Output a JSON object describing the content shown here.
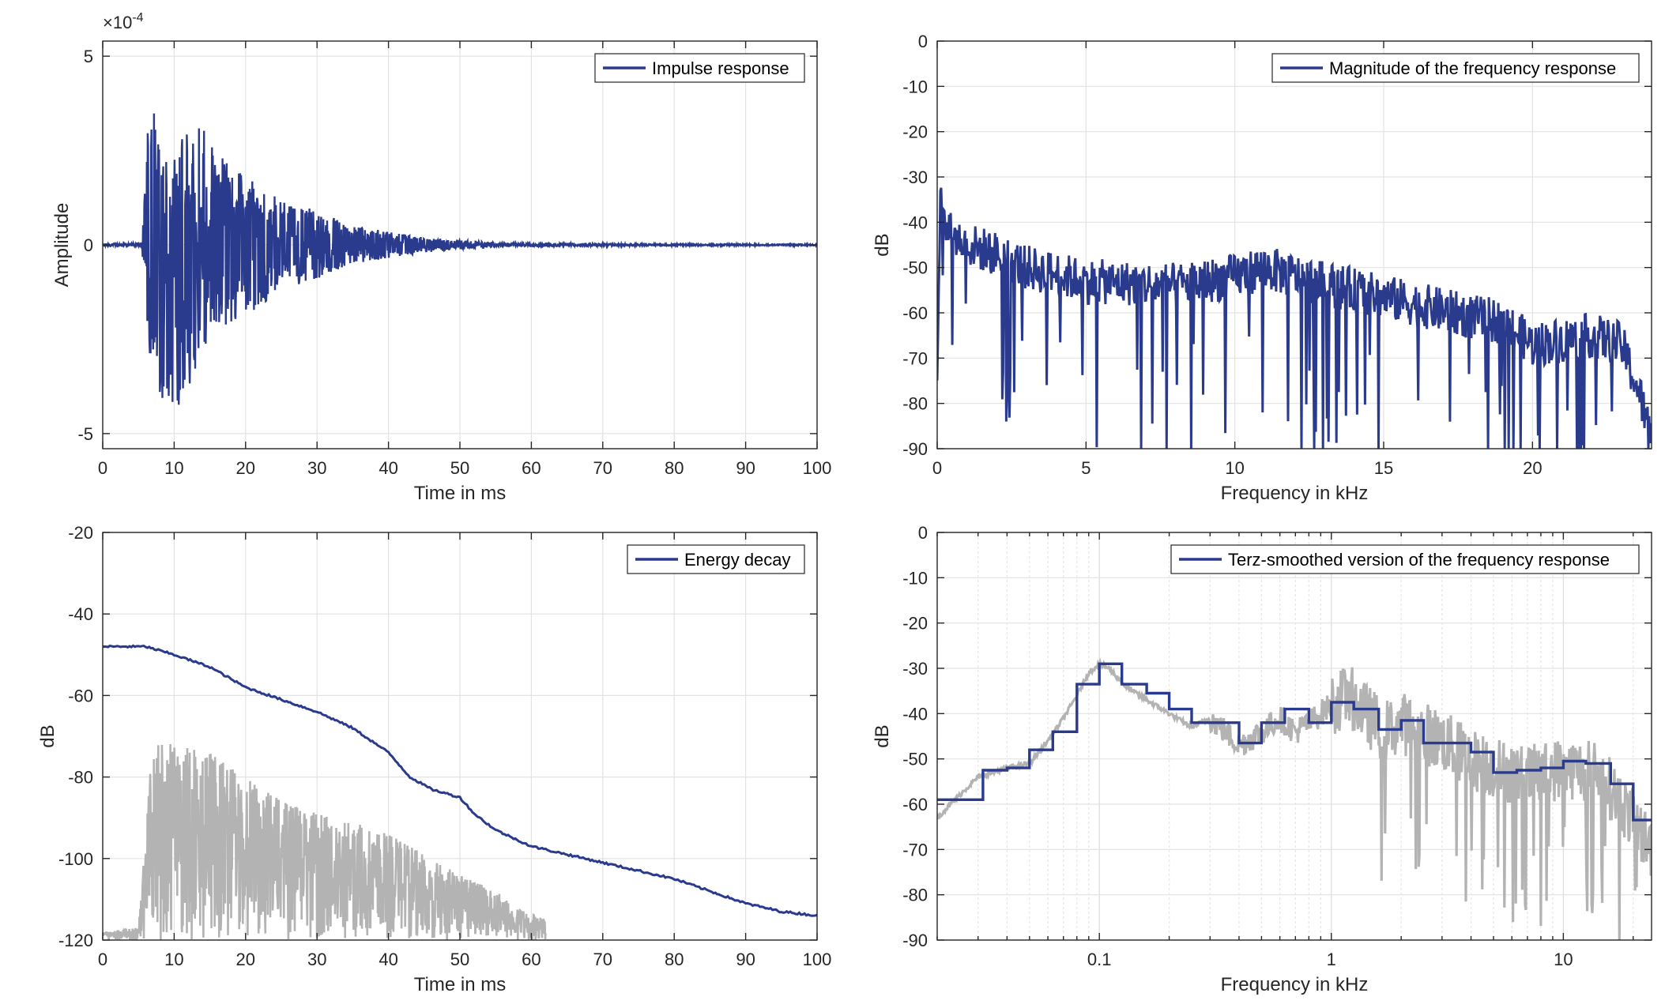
{
  "chart_data": [
    {
      "type": "line",
      "xlabel": "Time in ms",
      "ylabel": "Amplitude",
      "exponent_label": "×10",
      "exponent_power": "-4",
      "xlim": [
        0,
        100
      ],
      "ylim": [
        -5.4,
        5.4
      ],
      "xticks": [
        0,
        10,
        20,
        30,
        40,
        50,
        60,
        70,
        80,
        90,
        100
      ],
      "yticks": [
        -5,
        0,
        5
      ],
      "grid": true,
      "legend": "top-right",
      "envelope": {
        "x": [
          0,
          5.5,
          6.5,
          7,
          8,
          9,
          10,
          12,
          13,
          15,
          17,
          20,
          25,
          30,
          35,
          40,
          45,
          50,
          55,
          60,
          70,
          80,
          90,
          100
        ],
        "max": [
          0.05,
          0.1,
          4.1,
          4.1,
          2.6,
          2.2,
          2.6,
          3.0,
          3.4,
          2.8,
          2.4,
          1.8,
          1.2,
          0.9,
          0.5,
          0.35,
          0.2,
          0.12,
          0.06,
          0.04,
          0.03,
          0.02,
          0.02,
          0.02
        ],
        "min": [
          -0.05,
          -0.1,
          -2.9,
          -2.9,
          -4.2,
          -4.9,
          -4.5,
          -3.9,
          -3.3,
          -2.5,
          -2.2,
          -1.9,
          -1.2,
          -0.9,
          -0.5,
          -0.35,
          -0.2,
          -0.12,
          -0.06,
          -0.04,
          -0.03,
          -0.02,
          -0.02,
          -0.02
        ]
      },
      "series": [
        {
          "name": "Impulse response",
          "color": "#2a3a8c"
        }
      ]
    },
    {
      "type": "line",
      "xlabel": "Frequency in kHz",
      "ylabel": "dB",
      "xlim": [
        0,
        24
      ],
      "ylim": [
        -90,
        0
      ],
      "xticks": [
        0,
        5,
        10,
        15,
        20
      ],
      "yticks": [
        0,
        -10,
        -20,
        -30,
        -40,
        -50,
        -60,
        -70,
        -80,
        -90
      ],
      "grid": true,
      "legend": "top-right",
      "trend": {
        "x": [
          0,
          0.1,
          0.2,
          0.5,
          1,
          2,
          3,
          5,
          8,
          10,
          11,
          12,
          14,
          16,
          18,
          19,
          20,
          21,
          22,
          23,
          23.6,
          24
        ],
        "y": [
          -75,
          -33,
          -40,
          -43,
          -45,
          -47,
          -50,
          -53,
          -54,
          -52,
          -50,
          -52,
          -55,
          -58,
          -61,
          -62,
          -67,
          -66,
          -65,
          -67,
          -78,
          -88
        ]
      },
      "series": [
        {
          "name": "Magnitude of the frequency response",
          "color": "#2a3a8c"
        }
      ]
    },
    {
      "type": "line",
      "xlabel": "Time in ms",
      "ylabel": "dB",
      "xlim": [
        0,
        100
      ],
      "ylim": [
        -120,
        -20
      ],
      "xticks": [
        0,
        10,
        20,
        30,
        40,
        50,
        60,
        70,
        80,
        90,
        100
      ],
      "yticks": [
        -20,
        -40,
        -60,
        -80,
        -100,
        -120
      ],
      "grid": true,
      "legend": "top-right",
      "series": [
        {
          "name": "Energy decay",
          "color": "#2a3a8c",
          "x": [
            0,
            6,
            8,
            10,
            15,
            20,
            25,
            30,
            35,
            40,
            43,
            46,
            50,
            52,
            55,
            60,
            65,
            70,
            75,
            80,
            85,
            90,
            95,
            100
          ],
          "y": [
            -48,
            -48,
            -49,
            -50,
            -53,
            -58,
            -61,
            -64,
            -68,
            -74,
            -80,
            -83,
            -85,
            -89,
            -93,
            -97,
            -99,
            -101,
            -103,
            -105,
            -108,
            -111,
            -113,
            -114
          ]
        }
      ],
      "background_trace": {
        "color": "#b3b3b3",
        "x": [
          0,
          5,
          6,
          7,
          10,
          15,
          20,
          25,
          30,
          35,
          40,
          45,
          50,
          55,
          58,
          62
        ],
        "top": [
          -118,
          -117,
          -95,
          -70,
          -72,
          -74,
          -80,
          -86,
          -89,
          -91,
          -94,
          -99,
          -104,
          -108,
          -112,
          -115
        ],
        "floor": -120
      }
    },
    {
      "type": "line",
      "xscale": "log",
      "xlabel": "Frequency in kHz",
      "ylabel": "dB",
      "xlim": [
        0.02,
        24
      ],
      "ylim": [
        -90,
        0
      ],
      "xticks": [
        0.1,
        1,
        10
      ],
      "xticklabels": [
        "0.1",
        "1",
        "10"
      ],
      "yticks": [
        0,
        -10,
        -20,
        -30,
        -40,
        -50,
        -60,
        -70,
        -80,
        -90
      ],
      "grid": true,
      "legend": "top-right",
      "series": [
        {
          "name": "Terz-smoothed version of the frequency response",
          "color": "#2a3a8c",
          "steps": [
            [
              0.02,
              0.0315,
              -59
            ],
            [
              0.0315,
              0.04,
              -52.5
            ],
            [
              0.04,
              0.05,
              -52
            ],
            [
              0.05,
              0.063,
              -48
            ],
            [
              0.063,
              0.08,
              -44
            ],
            [
              0.08,
              0.1,
              -33.5
            ],
            [
              0.1,
              0.125,
              -29
            ],
            [
              0.125,
              0.16,
              -33.5
            ],
            [
              0.16,
              0.2,
              -35.5
            ],
            [
              0.2,
              0.25,
              -39
            ],
            [
              0.25,
              0.315,
              -42
            ],
            [
              0.315,
              0.4,
              -42
            ],
            [
              0.4,
              0.5,
              -46.5
            ],
            [
              0.5,
              0.63,
              -42
            ],
            [
              0.63,
              0.8,
              -39
            ],
            [
              0.8,
              1.0,
              -42
            ],
            [
              1.0,
              1.25,
              -37.5
            ],
            [
              1.25,
              1.6,
              -39
            ],
            [
              1.6,
              2.0,
              -43.5
            ],
            [
              2.0,
              2.5,
              -41.5
            ],
            [
              2.5,
              3.15,
              -46.5
            ],
            [
              3.15,
              4.0,
              -46.5
            ],
            [
              4.0,
              5.0,
              -48.5
            ],
            [
              5.0,
              6.3,
              -53
            ],
            [
              6.3,
              8.0,
              -52.5
            ],
            [
              8.0,
              10.0,
              -52
            ],
            [
              10.0,
              12.5,
              -50.5
            ],
            [
              12.5,
              16.0,
              -51
            ],
            [
              16.0,
              20.0,
              -55.5
            ],
            [
              20.0,
              24.0,
              -63.5
            ]
          ]
        }
      ],
      "background_trace": {
        "color": "#b3b3b3",
        "x": [
          0.02,
          0.025,
          0.03,
          0.04,
          0.05,
          0.06,
          0.07,
          0.08,
          0.09,
          0.1,
          0.11,
          0.13,
          0.16,
          0.2,
          0.25,
          0.3,
          0.35,
          0.4,
          0.5,
          0.6,
          0.7,
          0.8,
          0.9,
          1.0,
          1.2,
          1.4,
          1.7,
          2.0,
          3.0,
          4.0,
          5.0,
          7.0,
          10.0,
          14.0,
          18.0,
          24.0
        ],
        "y": [
          -63,
          -58,
          -54,
          -52,
          -51,
          -46,
          -41,
          -36,
          -31,
          -29,
          -30,
          -34,
          -37,
          -40,
          -43,
          -41,
          -44,
          -47,
          -44,
          -41,
          -44,
          -42,
          -40,
          -38,
          -36,
          -40,
          -44,
          -42,
          -46,
          -50,
          -52,
          -54,
          -52,
          -53,
          -60,
          -70
        ]
      }
    }
  ]
}
